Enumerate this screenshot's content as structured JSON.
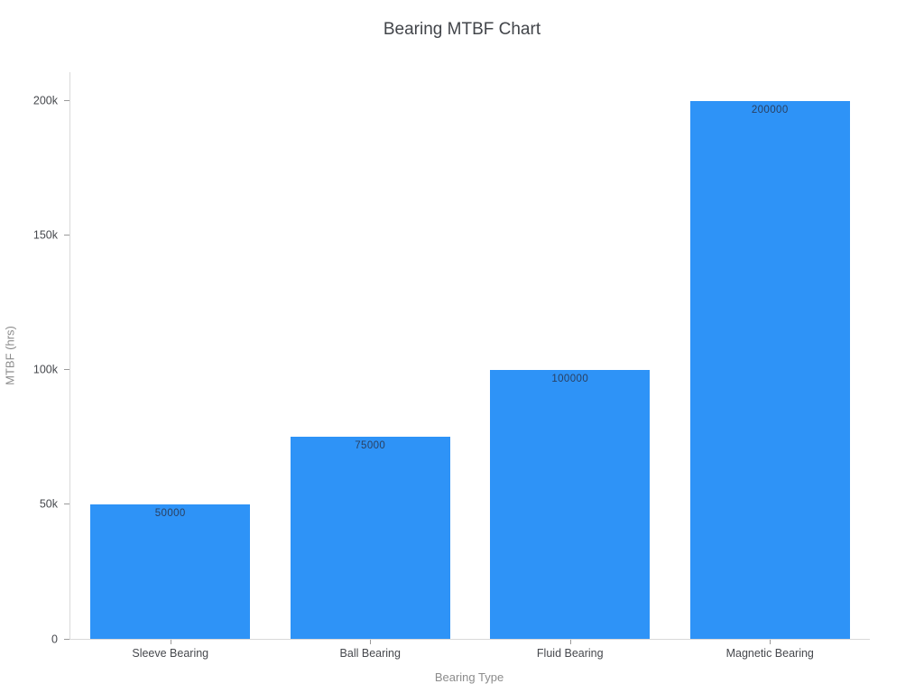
{
  "chart_data": {
    "type": "bar",
    "title": "Bearing MTBF Chart",
    "xlabel": "Bearing Type",
    "ylabel": "MTBF (hrs)",
    "categories": [
      "Sleeve Bearing",
      "Ball Bearing",
      "Fluid Bearing",
      "Magnetic Bearing"
    ],
    "values": [
      50000,
      75000,
      100000,
      200000
    ],
    "bar_labels": [
      "50000",
      "75000",
      "100000",
      "200000"
    ],
    "ylim": [
      0,
      210700
    ],
    "yticks": [
      {
        "value": 0,
        "label": "0"
      },
      {
        "value": 50000,
        "label": "50k"
      },
      {
        "value": 100000,
        "label": "100k"
      },
      {
        "value": 150000,
        "label": "150k"
      },
      {
        "value": 200000,
        "label": "200k"
      }
    ],
    "grid": false,
    "legend": "none",
    "colors": {
      "bar": "#2e93f7",
      "bar_label_text": "#2a3f5f",
      "tick_text": "#46484d",
      "axis_line": "#d9d9d9",
      "axis_title_text": "#8c8c8c",
      "title_text": "#42454a",
      "background": "#ffffff"
    }
  }
}
